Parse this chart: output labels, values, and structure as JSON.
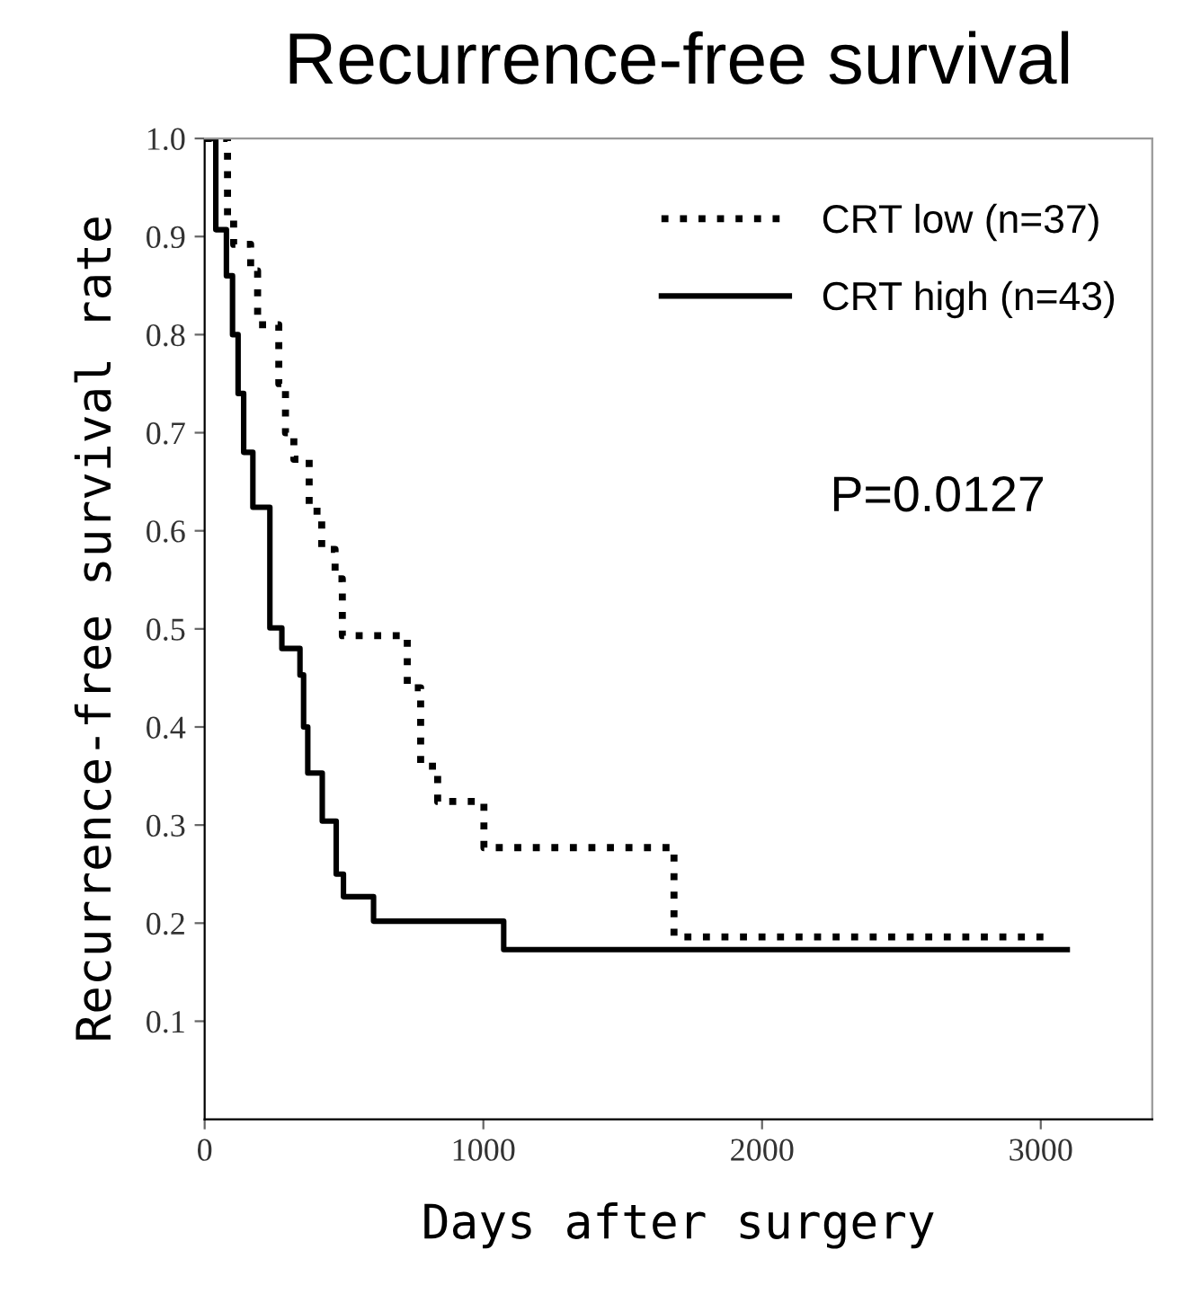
{
  "chart_data": {
    "type": "step",
    "title": "Recurrence-free survival",
    "xlabel": "Days after surgery",
    "ylabel": "Recurrence-free survival rate",
    "annotations": [
      "P=0.0127"
    ],
    "series": [
      {
        "name": "CRT low (n=37)",
        "color": "#000000",
        "line_style": "dotted",
        "x": [
          0,
          82,
          104,
          165,
          190,
          266,
          290,
          320,
          375,
          420,
          468,
          494,
          727,
          775,
          836,
          1002,
          1684,
          3026
        ],
        "values": [
          1.0,
          0.92,
          0.892,
          0.865,
          0.81,
          0.75,
          0.7,
          0.673,
          0.62,
          0.581,
          0.551,
          0.493,
          0.44,
          0.36,
          0.324,
          0.277,
          0.186,
          0.186
        ]
      },
      {
        "name": "CRT high (n=43)",
        "color": "#000000",
        "line_style": "solid",
        "x": [
          0,
          40,
          78,
          100,
          120,
          140,
          173,
          234,
          277,
          342,
          355,
          370,
          422,
          472,
          498,
          606,
          1073,
          3095
        ],
        "values": [
          1.0,
          0.907,
          0.86,
          0.8,
          0.74,
          0.68,
          0.624,
          0.501,
          0.48,
          0.453,
          0.4,
          0.353,
          0.304,
          0.25,
          0.227,
          0.202,
          0.173,
          0.173
        ]
      }
    ],
    "xlim": [
      0,
      3400
    ],
    "ylim": [
      0,
      1
    ],
    "xticks": [
      0,
      1000,
      2000,
      3000
    ],
    "yticks": [
      {
        "value": 0.1,
        "label": "0.1"
      },
      {
        "value": 0.2,
        "label": "0.2"
      },
      {
        "value": 0.3,
        "label": "0.3"
      },
      {
        "value": 0.4,
        "label": "0.4"
      },
      {
        "value": 0.5,
        "label": "0.5"
      },
      {
        "value": 0.6,
        "label": "0.6"
      },
      {
        "value": 0.7,
        "label": "0.7"
      },
      {
        "value": 0.8,
        "label": "0.8"
      },
      {
        "value": 0.9,
        "label": "0.9"
      },
      {
        "value": 1,
        "label": "1.0"
      }
    ],
    "legend": "top right",
    "grid": false
  }
}
